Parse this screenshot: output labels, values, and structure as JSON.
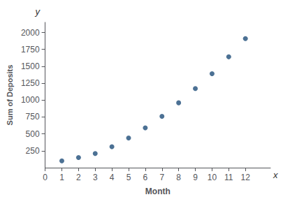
{
  "chart_data": {
    "type": "scatter",
    "xlabel": "Month",
    "ylabel": "Sum of Deposits",
    "annotations": [
      "x",
      "y"
    ],
    "x": [
      1,
      2,
      3,
      4,
      5,
      6,
      7,
      8,
      9,
      10,
      11,
      12
    ],
    "values": [
      100,
      150,
      210,
      310,
      440,
      590,
      760,
      960,
      1170,
      1390,
      1640,
      1910
    ],
    "color": "#1f4e79",
    "xlim": [
      0,
      13.5
    ],
    "ylim": [
      0,
      2150
    ],
    "xticks": [
      0,
      1,
      2,
      3,
      4,
      5,
      6,
      7,
      8,
      9,
      10,
      11,
      12
    ],
    "yticks": [
      250,
      500,
      750,
      1000,
      1250,
      1500,
      1750,
      2000
    ],
    "grid": false
  }
}
